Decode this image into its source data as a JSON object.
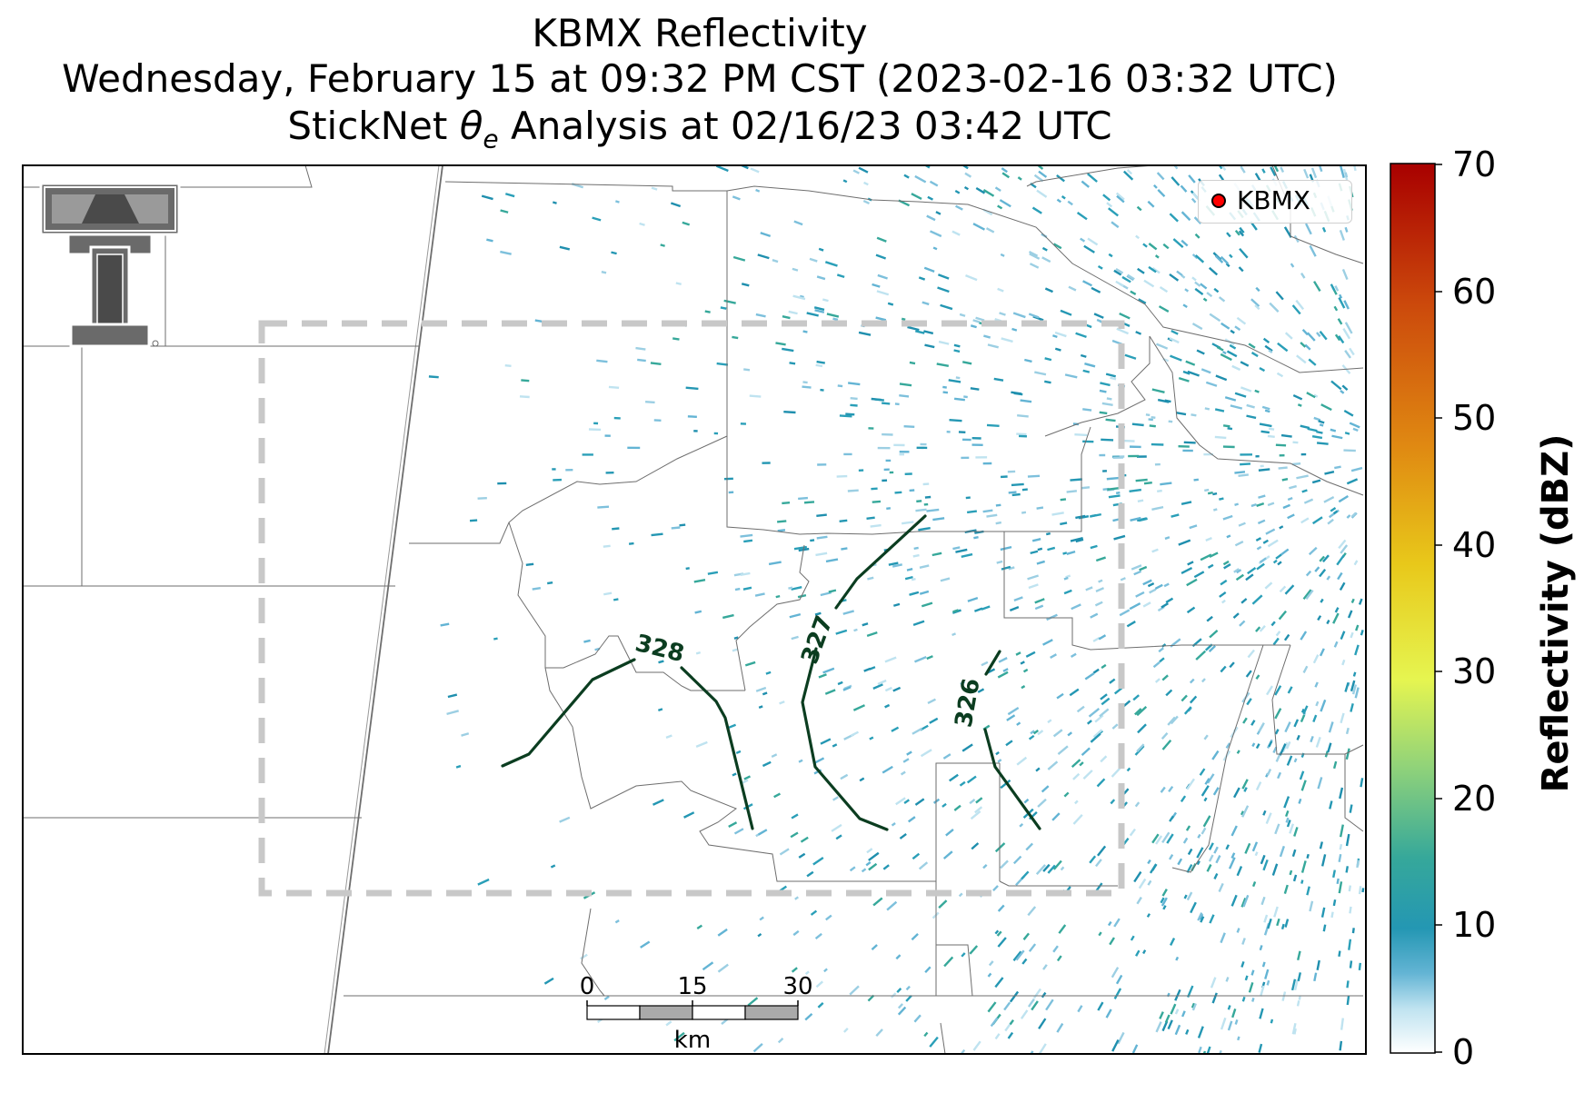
{
  "title": {
    "line1": "KBMX Reflectivity",
    "line2": "Wednesday, February 15 at 09:32 PM CST (2023-02-16 03:32 UTC)",
    "line3_prefix": "StickNet ",
    "line3_symbol": "θ",
    "line3_subscript": "e",
    "line3_suffix": " Analysis at 02/16/23 03:42 UTC"
  },
  "legend": {
    "label": "KBMX",
    "marker_color": "#ff0000"
  },
  "colorbar": {
    "label": "Reflectivity (dBZ)",
    "ticks": [
      "70",
      "60",
      "50",
      "40",
      "30",
      "20",
      "10",
      "0"
    ],
    "min": 0,
    "max": 70,
    "colormap_stops": [
      "#ffffff",
      "#bfe3f0",
      "#63b4d4",
      "#2497b3",
      "#36a89a",
      "#8fd27a",
      "#e6f550",
      "#e8c81a",
      "#e08a12",
      "#cc4a0c",
      "#a80000"
    ]
  },
  "contours": {
    "color": "#0b3d20",
    "labels": [
      "328",
      "327",
      "326"
    ]
  },
  "scalebar": {
    "ticks": [
      "0",
      "15",
      "30"
    ],
    "unit": "km"
  },
  "analysis_box": {
    "style": "dashed",
    "color": "#c8c8c8"
  },
  "icons": {
    "logo": "texas-tech-double-t-logo",
    "radar_site": "radar-site-marker"
  }
}
